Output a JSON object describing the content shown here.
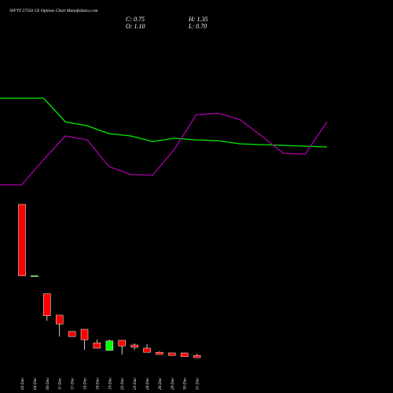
{
  "chart_data": {
    "type": "candlestick",
    "title": "NIFTY 27550  CE Options  Chart MunafaSutra.com",
    "ohlc_labels": {
      "close": "C: 0.75",
      "high": "H: 1.35",
      "open": "O: 1.10",
      "low": "L: 0.70"
    },
    "categories": [
      "03 Dec",
      "04 Dec",
      "09 Dec",
      "11 Dec",
      "15 Dec",
      "16 Dec",
      "18 Dec",
      "19 Dec",
      "22 Dec",
      "23 Dec",
      "24 Dec",
      "26 Dec",
      "29 Dec",
      "30 Dec",
      "31 Dec"
    ],
    "open": [
      25.1,
      13.75,
      10.9,
      7.5,
      4.9,
      5.25,
      3.1,
      1.9,
      3.5,
      2.75,
      2.25,
      1.6,
      1.5,
      1.5,
      1.1
    ],
    "high": [
      25.1,
      13.75,
      10.9,
      7.5,
      4.9,
      5.25,
      3.6,
      3.6,
      3.5,
      3.0,
      2.9,
      1.75,
      1.5,
      1.5,
      1.35
    ],
    "low": [
      13.75,
      13.75,
      6.6,
      4.1,
      4.1,
      2.0,
      2.25,
      1.9,
      1.25,
      2.0,
      1.6,
      1.25,
      1.1,
      0.9,
      0.7
    ],
    "close": [
      13.75,
      13.75,
      7.4,
      6.1,
      4.1,
      3.6,
      2.25,
      3.4,
      2.6,
      2.4,
      1.6,
      1.25,
      1.1,
      0.9,
      0.75
    ],
    "ylim": [
      0,
      25.1
    ],
    "up_color": "#00ff00",
    "down_color": "#ff0000",
    "lines": {
      "x": [
        0,
        1,
        2,
        3,
        4,
        5,
        6,
        7,
        8,
        9,
        10,
        11,
        12,
        13,
        14,
        15
      ],
      "xlim": [
        0,
        15
      ],
      "ylim": [
        0,
        100
      ],
      "series": [
        {
          "color": "#00ee00",
          "values": [
            87.5,
            87.5,
            87.5,
            72.5,
            70,
            65,
            63.5,
            60,
            62,
            61,
            60.5,
            58.5,
            58,
            57.5,
            57,
            56.5
          ]
        },
        {
          "color": "#aa00aa",
          "values": [
            32.5,
            32.5,
            48.5,
            63.5,
            61,
            44,
            39,
            38.5,
            55,
            77,
            78,
            74,
            63.5,
            52.5,
            52,
            72.5
          ]
        }
      ]
    }
  }
}
